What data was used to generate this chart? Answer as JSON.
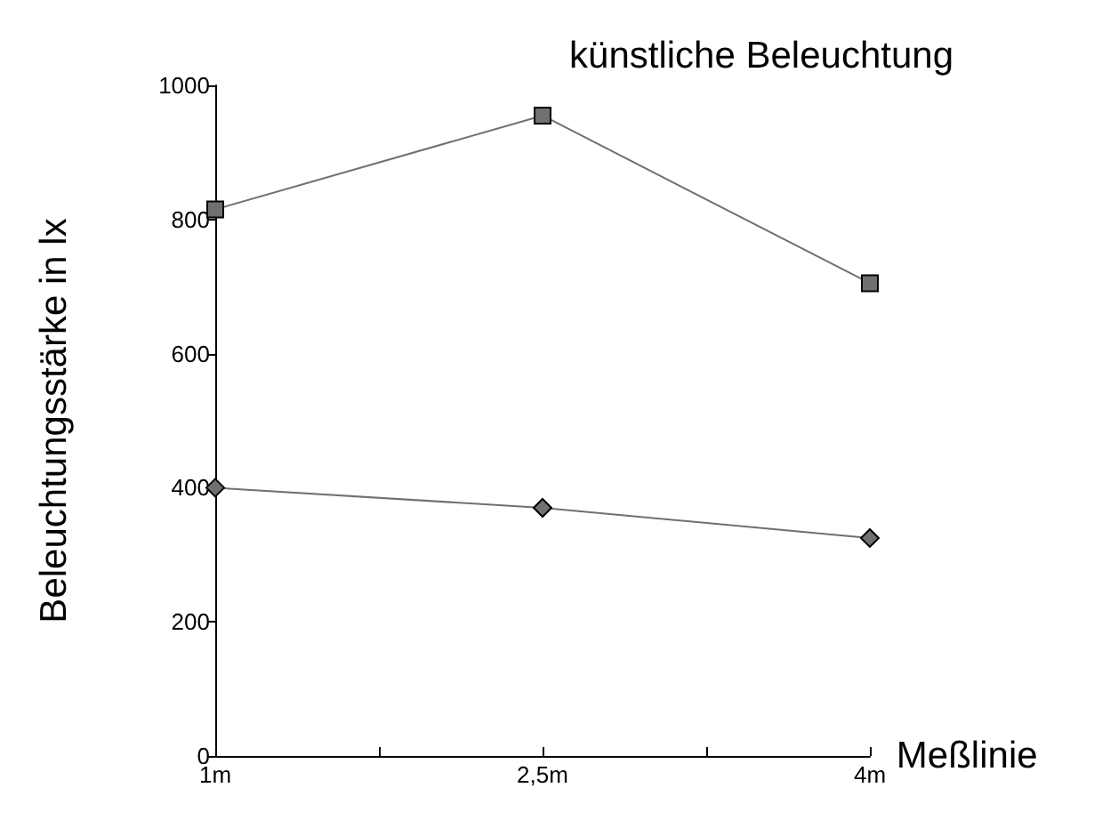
{
  "chart_data": {
    "type": "line",
    "title": "künstliche Beleuchtung",
    "xlabel": "Meßlinie",
    "ylabel": "Beleuchtungsstärke in lx",
    "x": [
      1,
      2.5,
      4
    ],
    "series": [
      {
        "color": "#707070",
        "marker": "square",
        "values": [
          815,
          955,
          705
        ]
      },
      {
        "color": "#707070",
        "marker": "diamond",
        "values": [
          400,
          370,
          325
        ]
      }
    ],
    "xlim": [
      1,
      4
    ],
    "xticks": [
      {
        "value": 1,
        "label": "1m"
      },
      {
        "value": 1.75,
        "label": null
      },
      {
        "value": 2.5,
        "label": "2,5m"
      },
      {
        "value": 3.25,
        "label": null
      },
      {
        "value": 4,
        "label": "4m"
      }
    ],
    "ylim": [
      0,
      1000
    ],
    "yticks": [
      0,
      200,
      400,
      600,
      800,
      1000
    ],
    "grid": false
  }
}
